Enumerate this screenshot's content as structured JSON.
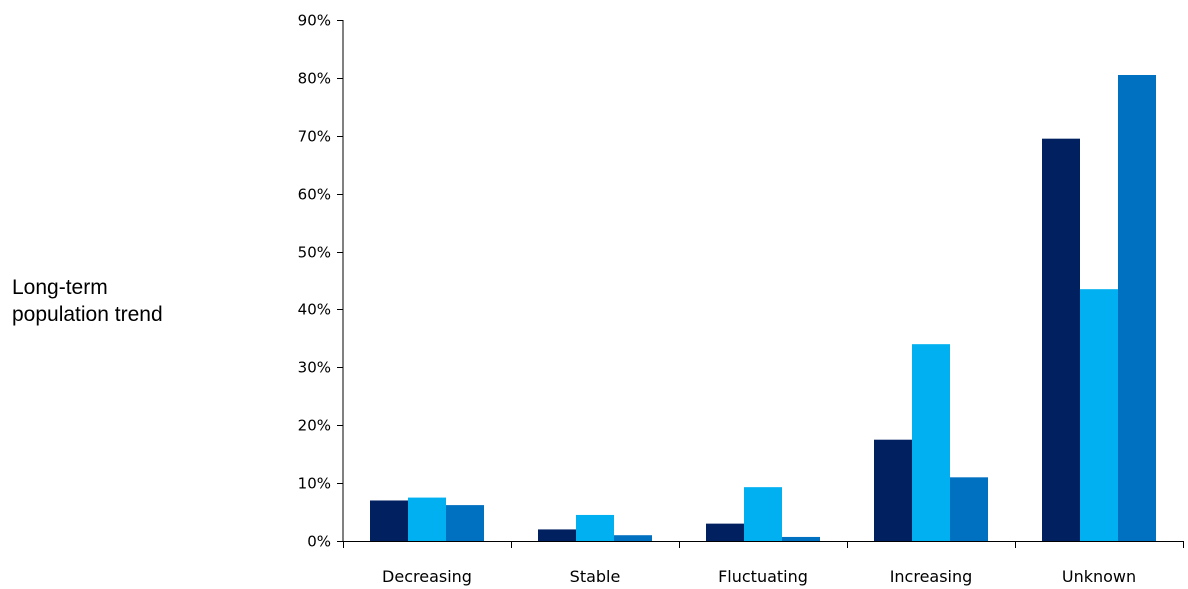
{
  "chart_data": {
    "type": "bar",
    "title": "",
    "xlabel": "",
    "ylabel": "Long-term\npopulation trend",
    "categories": [
      "Decreasing",
      "Stable",
      "Fluctuating",
      "Increasing",
      "Unknown"
    ],
    "series": [
      {
        "color": "#002060",
        "values": [
          7,
          2,
          3,
          17.5,
          69.5
        ]
      },
      {
        "color": "#00b0f0",
        "values": [
          7.5,
          4.5,
          9.3,
          34,
          43.5
        ]
      },
      {
        "color": "#0070c0",
        "values": [
          6.2,
          1,
          0.7,
          11,
          80.5
        ]
      }
    ],
    "ylim": [
      0,
      90
    ],
    "ytick_step": 10,
    "ytick_suffix": "%",
    "grid": false,
    "legend": "none"
  }
}
